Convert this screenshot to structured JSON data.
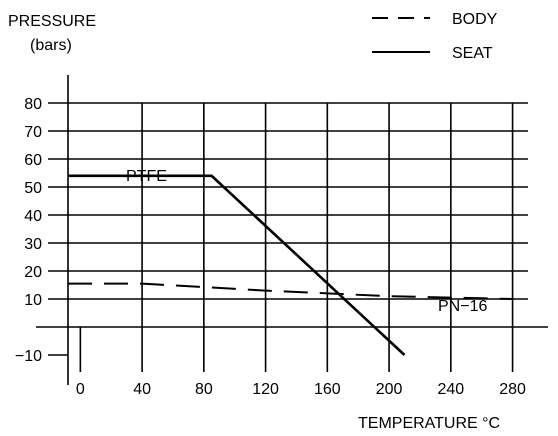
{
  "chart_data": {
    "type": "line",
    "ylabel_line1": "PRESSURE",
    "ylabel_line2": "(bars)",
    "xlabel": "TEMPERATURE  °C",
    "x_ticks": [
      0,
      40,
      80,
      120,
      160,
      200,
      240,
      280
    ],
    "x_tick_labels": [
      "0",
      "40",
      "80",
      "120",
      "160",
      "200",
      "240",
      "280"
    ],
    "y_ticks": [
      -10,
      10,
      20,
      30,
      40,
      50,
      60,
      70,
      80
    ],
    "y_tick_labels": [
      "−10",
      "10",
      "20",
      "30",
      "40",
      "50",
      "60",
      "70",
      "80"
    ],
    "xlim": [
      -8,
      290
    ],
    "ylim": [
      -10,
      80
    ],
    "grid": true,
    "legend": {
      "placement": "top-right",
      "entries": [
        {
          "label": "BODY",
          "style": "dashed"
        },
        {
          "label": "SEAT",
          "style": "solid"
        }
      ]
    },
    "series": [
      {
        "name": "SEAT",
        "style": "solid",
        "annotation": "PTFE",
        "points": [
          [
            -8,
            54
          ],
          [
            85,
            54
          ],
          [
            210,
            -10
          ]
        ]
      },
      {
        "name": "BODY",
        "style": "dashed",
        "annotation": "PN−16",
        "points": [
          [
            -8,
            15.5
          ],
          [
            40,
            15.5
          ],
          [
            120,
            13
          ],
          [
            160,
            12
          ],
          [
            200,
            11
          ],
          [
            240,
            10.5
          ],
          [
            280,
            10
          ]
        ]
      }
    ]
  }
}
